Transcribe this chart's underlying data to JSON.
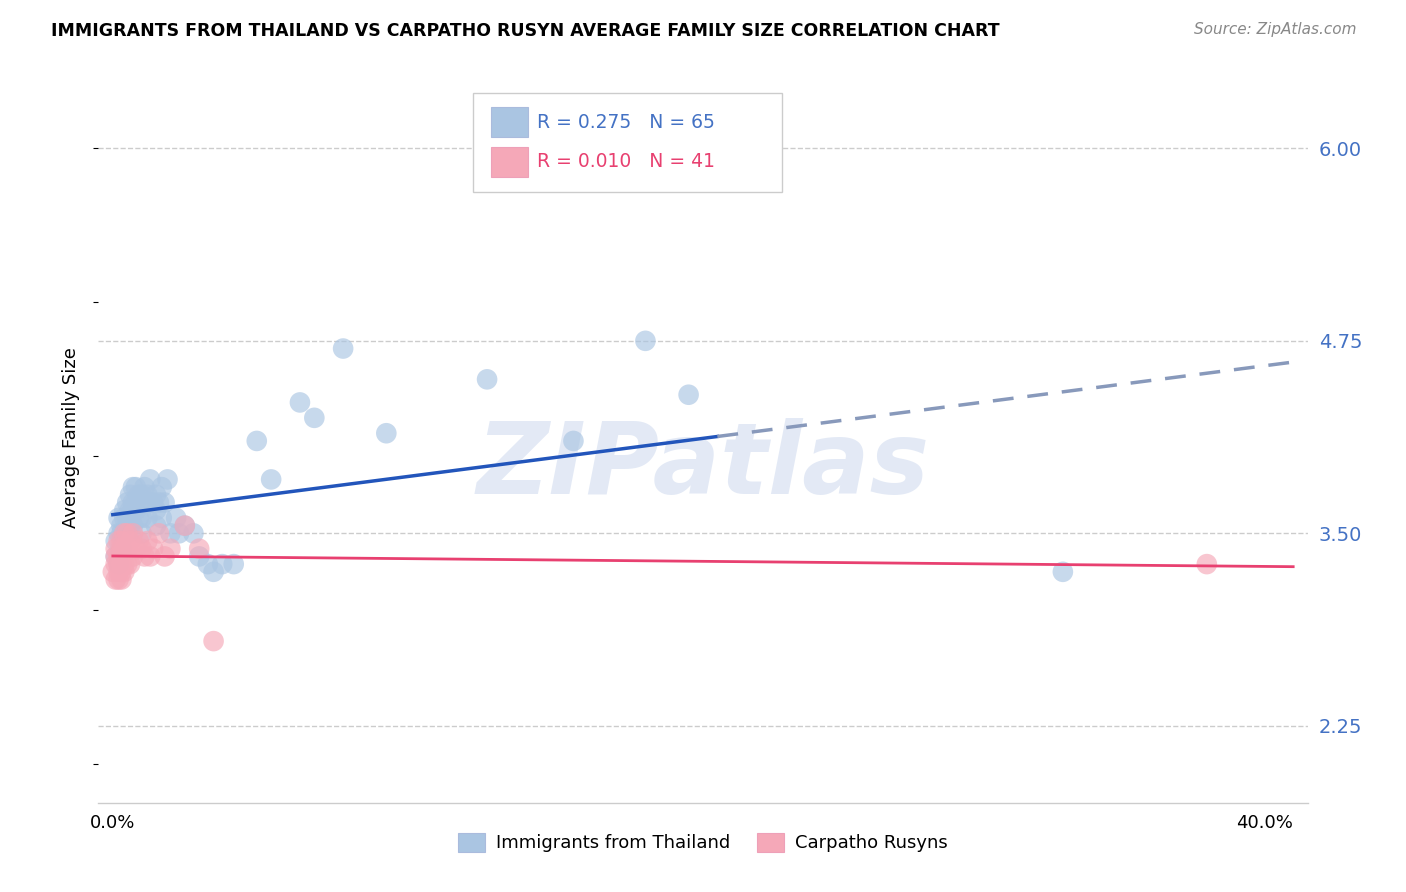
{
  "title": "IMMIGRANTS FROM THAILAND VS CARPATHO RUSYN AVERAGE FAMILY SIZE CORRELATION CHART",
  "source": "Source: ZipAtlas.com",
  "ylabel": "Average Family Size",
  "yticks": [
    2.25,
    3.5,
    4.75,
    6.0
  ],
  "xtick_labels": [
    "0.0%",
    "",
    "",
    "",
    "",
    "",
    "",
    "",
    "40.0%"
  ],
  "xticks": [
    0.0,
    0.05,
    0.1,
    0.15,
    0.2,
    0.25,
    0.3,
    0.35,
    0.4
  ],
  "xlim": [
    -0.005,
    0.415
  ],
  "ylim": [
    1.75,
    6.5
  ],
  "legend_label1": "Immigrants from Thailand",
  "legend_label2": "Carpatho Rusyns",
  "watermark": "ZIPatlas",
  "color_blue": "#aac5e2",
  "color_pink": "#f5a8b8",
  "line_blue": "#2255bb",
  "line_pink": "#e84070",
  "line_dash_color": "#8899bb",
  "thailand_x": [
    0.001,
    0.001,
    0.002,
    0.002,
    0.002,
    0.003,
    0.003,
    0.003,
    0.004,
    0.004,
    0.004,
    0.005,
    0.005,
    0.005,
    0.006,
    0.006,
    0.006,
    0.007,
    0.007,
    0.007,
    0.007,
    0.008,
    0.008,
    0.008,
    0.009,
    0.009,
    0.01,
    0.01,
    0.01,
    0.011,
    0.011,
    0.012,
    0.012,
    0.013,
    0.013,
    0.014,
    0.015,
    0.015,
    0.015,
    0.016,
    0.017,
    0.017,
    0.018,
    0.019,
    0.02,
    0.022,
    0.023,
    0.025,
    0.028,
    0.03,
    0.033,
    0.035,
    0.038,
    0.042,
    0.05,
    0.055,
    0.065,
    0.07,
    0.08,
    0.095,
    0.13,
    0.16,
    0.185,
    0.2,
    0.33
  ],
  "thailand_y": [
    3.35,
    3.45,
    3.3,
    3.5,
    3.6,
    3.4,
    3.5,
    3.55,
    3.5,
    3.6,
    3.65,
    3.5,
    3.6,
    3.7,
    3.55,
    3.65,
    3.75,
    3.55,
    3.65,
    3.7,
    3.8,
    3.65,
    3.7,
    3.8,
    3.6,
    3.75,
    3.5,
    3.6,
    3.75,
    3.7,
    3.8,
    3.6,
    3.75,
    3.7,
    3.85,
    3.7,
    3.55,
    3.65,
    3.75,
    3.7,
    3.6,
    3.8,
    3.7,
    3.85,
    3.5,
    3.6,
    3.5,
    3.55,
    3.5,
    3.35,
    3.3,
    3.25,
    3.3,
    3.3,
    4.1,
    3.85,
    4.35,
    4.25,
    4.7,
    4.15,
    4.5,
    4.1,
    4.75,
    4.4,
    3.25
  ],
  "rusyn_x": [
    0.0,
    0.001,
    0.001,
    0.001,
    0.001,
    0.002,
    0.002,
    0.002,
    0.002,
    0.002,
    0.003,
    0.003,
    0.003,
    0.003,
    0.003,
    0.003,
    0.004,
    0.004,
    0.004,
    0.004,
    0.005,
    0.005,
    0.005,
    0.006,
    0.006,
    0.007,
    0.007,
    0.008,
    0.009,
    0.01,
    0.011,
    0.012,
    0.013,
    0.014,
    0.016,
    0.018,
    0.02,
    0.025,
    0.03,
    0.035,
    0.38
  ],
  "rusyn_y": [
    3.25,
    3.3,
    3.35,
    3.2,
    3.4,
    3.25,
    3.3,
    3.35,
    3.2,
    3.45,
    3.2,
    3.25,
    3.3,
    3.35,
    3.4,
    3.45,
    3.25,
    3.3,
    3.4,
    3.5,
    3.3,
    3.4,
    3.5,
    3.3,
    3.45,
    3.35,
    3.5,
    3.4,
    3.45,
    3.4,
    3.35,
    3.45,
    3.35,
    3.4,
    3.5,
    3.35,
    3.4,
    3.55,
    3.4,
    2.8,
    3.3
  ],
  "solid_line_end_x": 0.21
}
